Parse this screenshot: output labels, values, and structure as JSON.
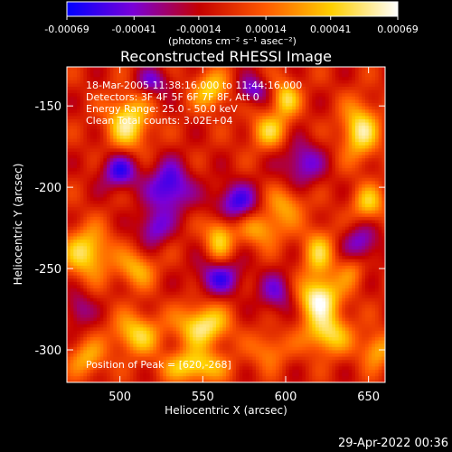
{
  "chart_data": {
    "type": "heatmap",
    "title": "Reconstructed RHESSI Image",
    "xlabel": "Heliocentric X (arcsec)",
    "ylabel": "Heliocentric Y (arcsec)",
    "xlim": [
      468,
      660
    ],
    "ylim": [
      -320,
      -126
    ],
    "x_ticks": [
      500,
      550,
      600,
      650
    ],
    "y_ticks": [
      -300,
      -250,
      -200,
      -150
    ],
    "info_lines": [
      "18-Mar-2005 11:38:16.000 to 11:44:16.000",
      "Detectors: 3F 4F 5F 6F 7F 8F, Att 0",
      "Energy Range: 25.0 - 50.0 keV",
      "Clean     Total counts: 3.02E+04"
    ],
    "peak_label": "Position of Peak = [620,-268]",
    "peak": {
      "x": 620,
      "y": -268
    },
    "colorbar": {
      "range": [
        -0.00069,
        0.00069
      ],
      "ticks": [
        -0.00069,
        -0.00041,
        -0.00014,
        0.00014,
        0.00041,
        0.00069
      ],
      "tick_labels": [
        "-0.00069",
        "-0.00041",
        "-0.00014",
        "0.00014",
        "0.00041",
        "0.00069"
      ],
      "unit_label": "(photons cm⁻² s⁻¹ asec⁻²)",
      "colors": [
        "#0000ff",
        "#7a00d8",
        "#c40000",
        "#ff5a00",
        "#ffd000",
        "#ffffff"
      ]
    },
    "grid": false,
    "legend": "none",
    "features": [
      {
        "x": 620,
        "y": -268,
        "amp": 0.00069,
        "sx": 9,
        "sy": 9
      },
      {
        "x": 625,
        "y": -290,
        "amp": 0.00055,
        "sx": 10,
        "sy": 9
      },
      {
        "x": 620,
        "y": -240,
        "amp": 0.00045,
        "sx": 7,
        "sy": 11
      },
      {
        "x": 550,
        "y": -285,
        "amp": 0.00062,
        "sx": 11,
        "sy": 9
      },
      {
        "x": 545,
        "y": -310,
        "amp": 0.00055,
        "sx": 13,
        "sy": 7
      },
      {
        "x": 510,
        "y": -290,
        "amp": 0.0005,
        "sx": 10,
        "sy": 9
      },
      {
        "x": 480,
        "y": -305,
        "amp": 0.00038,
        "sx": 8,
        "sy": 8
      },
      {
        "x": 505,
        "y": -160,
        "amp": 0.0006,
        "sx": 9,
        "sy": 12
      },
      {
        "x": 480,
        "y": -240,
        "amp": 0.00055,
        "sx": 10,
        "sy": 11
      },
      {
        "x": 510,
        "y": -250,
        "amp": 0.0004,
        "sx": 8,
        "sy": 8
      },
      {
        "x": 555,
        "y": -140,
        "amp": 0.0005,
        "sx": 8,
        "sy": 8
      },
      {
        "x": 560,
        "y": -230,
        "amp": 0.0005,
        "sx": 6,
        "sy": 10
      },
      {
        "x": 590,
        "y": -165,
        "amp": 0.00045,
        "sx": 8,
        "sy": 8
      },
      {
        "x": 600,
        "y": -145,
        "amp": 0.0005,
        "sx": 6,
        "sy": 8
      },
      {
        "x": 645,
        "y": -165,
        "amp": 0.0006,
        "sx": 8,
        "sy": 12
      },
      {
        "x": 650,
        "y": -210,
        "amp": 0.00045,
        "sx": 7,
        "sy": 8
      },
      {
        "x": 585,
        "y": -225,
        "amp": 0.0004,
        "sx": 10,
        "sy": 8
      },
      {
        "x": 600,
        "y": -210,
        "amp": 0.00035,
        "sx": 8,
        "sy": 8
      },
      {
        "x": 655,
        "y": -300,
        "amp": 0.0004,
        "sx": 7,
        "sy": 8
      },
      {
        "x": 590,
        "y": -300,
        "amp": 0.0003,
        "sx": 8,
        "sy": 8
      },
      {
        "x": 640,
        "y": -250,
        "amp": 0.0003,
        "sx": 6,
        "sy": 8
      },
      {
        "x": 570,
        "y": -210,
        "amp": -0.0005,
        "sx": 10,
        "sy": 9
      },
      {
        "x": 610,
        "y": -185,
        "amp": -0.0004,
        "sx": 9,
        "sy": 10
      },
      {
        "x": 530,
        "y": -200,
        "amp": -0.00055,
        "sx": 9,
        "sy": 11
      },
      {
        "x": 500,
        "y": -190,
        "amp": -0.0005,
        "sx": 8,
        "sy": 8
      },
      {
        "x": 560,
        "y": -255,
        "amp": -0.00045,
        "sx": 10,
        "sy": 8
      },
      {
        "x": 520,
        "y": -135,
        "amp": -0.00035,
        "sx": 8,
        "sy": 6
      },
      {
        "x": 645,
        "y": -235,
        "amp": -0.0004,
        "sx": 8,
        "sy": 9
      },
      {
        "x": 595,
        "y": -265,
        "amp": -0.00035,
        "sx": 8,
        "sy": 9
      },
      {
        "x": 475,
        "y": -275,
        "amp": -0.0003,
        "sx": 6,
        "sy": 8
      },
      {
        "x": 580,
        "y": -140,
        "amp": -0.0004,
        "sx": 7,
        "sy": 6
      },
      {
        "x": 520,
        "y": -225,
        "amp": -0.0004,
        "sx": 7,
        "sy": 8
      }
    ]
  },
  "footer": {
    "timestamp": "29-Apr-2022 00:36"
  }
}
